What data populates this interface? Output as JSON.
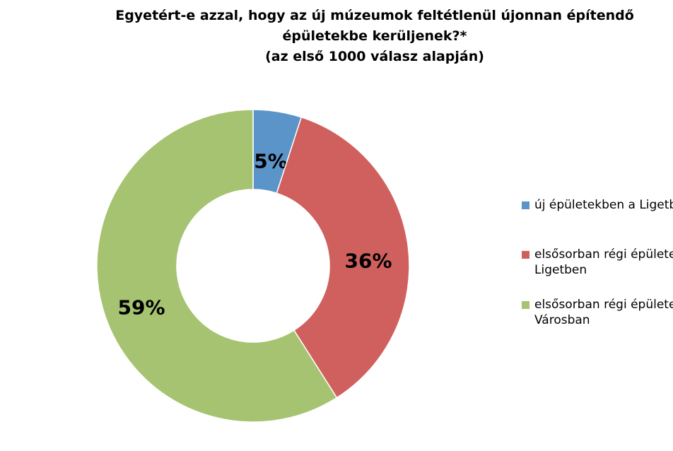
{
  "chart_data": {
    "type": "pie",
    "title_lines": [
      "Egyetért-e azzal, hogy az új múzeumok feltétlenül újonnan építendő",
      "épületekbe kerüljenek?*",
      "(az első 1000 válasz alapján)"
    ],
    "slices": [
      {
        "label": "új épületekben a Ligetben",
        "legend_lines": [
          "új épületekben a Ligetben"
        ],
        "value": 5,
        "value_label": "5%",
        "color": "#5b94c8"
      },
      {
        "label": "elsősorban régi épületekben a Ligetben",
        "legend_lines": [
          "elsősorban régi épületekben a",
          "Ligetben"
        ],
        "value": 36,
        "value_label": "36%",
        "color": "#d0605e"
      },
      {
        "label": "elsősorban régi épületekben a Városban",
        "legend_lines": [
          "elsősorban régi épületekben a",
          "Városban"
        ],
        "value": 59,
        "value_label": "59%",
        "color": "#a5c370"
      }
    ],
    "donut": true,
    "legend_position": "right"
  }
}
